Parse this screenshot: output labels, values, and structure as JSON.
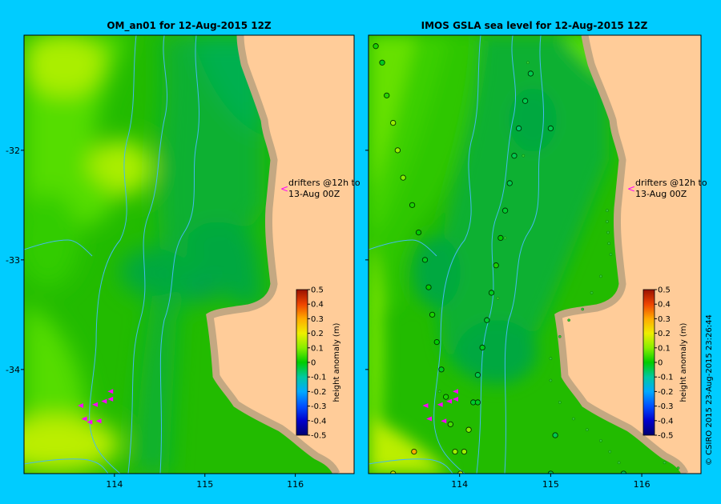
{
  "chart_data": [
    {
      "type": "heatmap",
      "title": "OM_an01  for 12-Aug-2015 12Z",
      "x_ticks": [
        "114",
        "115",
        "116"
      ],
      "y_ticks": [
        "-32",
        "-33",
        "-34"
      ],
      "xlim": [
        113.0,
        116.65
      ],
      "ylim": [
        -34.95,
        -30.95
      ],
      "annotation": "drifters @12h to\n13-Aug 00Z",
      "colorbar": {
        "label": "height anomaly (m)",
        "ticks": [
          "0.5",
          "0.4",
          "0.3",
          "0.2",
          "0.1",
          "0",
          "-0.1",
          "-0.2",
          "-0.3",
          "-0.4",
          "-0.5"
        ],
        "range": [
          -0.5,
          0.5
        ]
      },
      "colors": {
        "land": "#ffcc99",
        "coast": "#c4a882",
        "contour": "#44bbee",
        "drifter": "#ff00ff"
      },
      "drifters": [
        {
          "lon": 113.62,
          "lat": -34.33
        },
        {
          "lon": 113.78,
          "lat": -34.32
        },
        {
          "lon": 113.88,
          "lat": -34.29
        },
        {
          "lon": 113.95,
          "lat": -34.27
        },
        {
          "lon": 113.95,
          "lat": -34.2
        },
        {
          "lon": 113.66,
          "lat": -34.45
        },
        {
          "lon": 113.82,
          "lat": -34.47
        },
        {
          "lon": 113.72,
          "lat": -34.48
        }
      ]
    },
    {
      "type": "heatmap",
      "title": "IMOS GSLA sea level  for 12-Aug-2015 12Z",
      "x_ticks": [
        "114",
        "115",
        "116"
      ],
      "y_ticks": [
        "-32",
        "-33",
        "-34"
      ],
      "xlim": [
        113.0,
        116.65
      ],
      "ylim": [
        -34.95,
        -30.95
      ],
      "annotation": "drifters @12h to\n13-Aug 00Z",
      "colorbar": {
        "label": "height anomaly (m)",
        "ticks": [
          "0.5",
          "0.4",
          "0.3",
          "0.2",
          "0.1",
          "0",
          "-0.1",
          "-0.2",
          "-0.3",
          "-0.4",
          "-0.5"
        ],
        "range": [
          -0.5,
          0.5
        ]
      },
      "colors": {
        "land": "#ffcc99",
        "coast": "#c4a882",
        "contour": "#44bbee",
        "drifter": "#ff00ff",
        "obs_outline": "#003300"
      },
      "drifters": [
        {
          "lon": 113.62,
          "lat": -34.33
        },
        {
          "lon": 113.78,
          "lat": -34.32
        },
        {
          "lon": 113.88,
          "lat": -34.29
        },
        {
          "lon": 113.95,
          "lat": -34.27
        },
        {
          "lon": 113.95,
          "lat": -34.2
        },
        {
          "lon": 113.66,
          "lat": -34.45
        },
        {
          "lon": 113.82,
          "lat": -34.47
        }
      ],
      "observations": [
        {
          "lon": 113.08,
          "lat": -31.05,
          "h": 0.02
        },
        {
          "lon": 113.15,
          "lat": -31.2,
          "h": -0.02
        },
        {
          "lon": 113.2,
          "lat": -31.5,
          "h": 0.03
        },
        {
          "lon": 113.27,
          "lat": -31.75,
          "h": 0.12
        },
        {
          "lon": 113.32,
          "lat": -32.0,
          "h": 0.12
        },
        {
          "lon": 113.38,
          "lat": -32.25,
          "h": 0.1
        },
        {
          "lon": 113.48,
          "lat": -32.5,
          "h": 0.02
        },
        {
          "lon": 113.55,
          "lat": -32.75,
          "h": 0.0
        },
        {
          "lon": 113.62,
          "lat": -33.0,
          "h": -0.02
        },
        {
          "lon": 113.66,
          "lat": -33.25,
          "h": 0.0
        },
        {
          "lon": 113.7,
          "lat": -33.5,
          "h": 0.02
        },
        {
          "lon": 113.75,
          "lat": -33.75,
          "h": 0.0
        },
        {
          "lon": 113.8,
          "lat": -34.0,
          "h": -0.02
        },
        {
          "lon": 113.85,
          "lat": -34.25,
          "h": 0.02
        },
        {
          "lon": 113.9,
          "lat": -34.5,
          "h": 0.05
        },
        {
          "lon": 113.95,
          "lat": -34.75,
          "h": 0.12
        },
        {
          "lon": 114.01,
          "lat": -34.95,
          "h": 0.15
        },
        {
          "lon": 114.78,
          "lat": -31.3,
          "h": -0.05
        },
        {
          "lon": 114.72,
          "lat": -31.55,
          "h": -0.05
        },
        {
          "lon": 114.65,
          "lat": -31.8,
          "h": -0.07
        },
        {
          "lon": 114.6,
          "lat": -32.05,
          "h": -0.05
        },
        {
          "lon": 114.55,
          "lat": -32.3,
          "h": -0.05
        },
        {
          "lon": 114.5,
          "lat": -32.55,
          "h": -0.03
        },
        {
          "lon": 114.45,
          "lat": -32.8,
          "h": 0.0
        },
        {
          "lon": 114.4,
          "lat": -33.05,
          "h": 0.02
        },
        {
          "lon": 114.35,
          "lat": -33.3,
          "h": -0.02
        },
        {
          "lon": 114.3,
          "lat": -33.55,
          "h": -0.03
        },
        {
          "lon": 114.25,
          "lat": -33.8,
          "h": -0.02
        },
        {
          "lon": 114.2,
          "lat": -34.05,
          "h": -0.05
        },
        {
          "lon": 114.15,
          "lat": -34.3,
          "h": -0.03
        },
        {
          "lon": 114.1,
          "lat": -34.55,
          "h": 0.1
        },
        {
          "lon": 114.05,
          "lat": -34.75,
          "h": 0.12
        },
        {
          "lon": 113.5,
          "lat": -34.75,
          "h": 0.3
        },
        {
          "lon": 113.27,
          "lat": -34.95,
          "h": 0.18
        },
        {
          "lon": 115.0,
          "lat": -31.8,
          "h": -0.05
        },
        {
          "lon": 114.2,
          "lat": -34.3,
          "h": -0.02
        },
        {
          "lon": 115.8,
          "lat": -34.95,
          "h": -0.05
        },
        {
          "lon": 115.0,
          "lat": -34.95,
          "h": -0.05
        },
        {
          "lon": 115.05,
          "lat": -34.6,
          "h": -0.05
        }
      ],
      "tiny_obs": [
        {
          "lon": 115.62,
          "lat": -32.55
        },
        {
          "lon": 115.62,
          "lat": -32.65
        },
        {
          "lon": 115.63,
          "lat": -32.75
        },
        {
          "lon": 115.64,
          "lat": -32.85
        },
        {
          "lon": 115.66,
          "lat": -32.95
        },
        {
          "lon": 115.55,
          "lat": -33.15
        },
        {
          "lon": 115.45,
          "lat": -33.3
        },
        {
          "lon": 115.35,
          "lat": -33.45
        },
        {
          "lon": 115.2,
          "lat": -33.55
        },
        {
          "lon": 115.1,
          "lat": -33.7
        },
        {
          "lon": 115.0,
          "lat": -33.9
        },
        {
          "lon": 115.0,
          "lat": -34.1
        },
        {
          "lon": 115.1,
          "lat": -34.3
        },
        {
          "lon": 115.25,
          "lat": -34.45
        },
        {
          "lon": 115.4,
          "lat": -34.55
        },
        {
          "lon": 115.55,
          "lat": -34.65
        },
        {
          "lon": 115.65,
          "lat": -34.75
        },
        {
          "lon": 115.75,
          "lat": -34.85
        },
        {
          "lon": 116.25,
          "lat": -34.85
        },
        {
          "lon": 116.4,
          "lat": -34.9
        },
        {
          "lon": 113.78,
          "lat": -34.2
        },
        {
          "lon": 114.7,
          "lat": -32.05
        },
        {
          "lon": 114.42,
          "lat": -33.35
        },
        {
          "lon": 114.5,
          "lat": -32.8
        },
        {
          "lon": 114.75,
          "lat": -31.2
        }
      ]
    }
  ],
  "copyright": "© CSIRO 2015    23-Aug-2015 23:26:44"
}
